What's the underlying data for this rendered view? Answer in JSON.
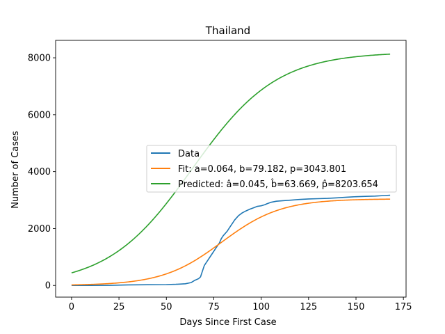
{
  "chart_data": {
    "type": "line",
    "title": "Thailand",
    "xlabel": "Days Since First Case",
    "ylabel": "Number of Cases",
    "xlim": [
      -8.4,
      176.4
    ],
    "ylim": [
      -410,
      8613
    ],
    "xticks": [
      0,
      25,
      50,
      75,
      100,
      125,
      150,
      175
    ],
    "yticks": [
      0,
      2000,
      4000,
      6000,
      8000
    ],
    "grid": false,
    "legend_placement": "center-right",
    "series": [
      {
        "name": "Data",
        "color": "#1f77b4",
        "x": [
          0,
          10,
          20,
          30,
          40,
          50,
          55,
          60,
          63,
          65,
          67,
          68,
          69,
          70,
          72,
          74,
          76,
          78,
          79,
          80,
          82,
          84,
          85,
          86,
          88,
          90,
          92,
          94,
          96,
          98,
          100,
          102,
          103,
          105,
          108,
          112,
          116,
          120,
          125,
          130,
          135,
          140,
          145,
          150,
          155,
          160,
          165,
          168
        ],
        "y": [
          0,
          0,
          5,
          20,
          25,
          30,
          40,
          60,
          100,
          180,
          240,
          300,
          500,
          700,
          900,
          1100,
          1300,
          1500,
          1650,
          1750,
          1900,
          2100,
          2200,
          2300,
          2450,
          2550,
          2620,
          2680,
          2730,
          2780,
          2800,
          2840,
          2870,
          2920,
          2960,
          2980,
          3000,
          3020,
          3040,
          3050,
          3060,
          3080,
          3100,
          3120,
          3130,
          3140,
          3160,
          3170
        ]
      },
      {
        "name": "Fit: a=0.064, b=79.182, p=3043.801",
        "color": "#ff7f0e",
        "a": 0.064,
        "b": 79.182,
        "p": 3043.801,
        "x_range": [
          0,
          168
        ]
      },
      {
        "name": "Predicted: â=0.045, b̂=63.669, p̂=8203.654",
        "color": "#2ca02c",
        "a": 0.045,
        "b": 63.669,
        "p": 8203.654,
        "x_range": [
          0,
          168
        ]
      }
    ]
  }
}
